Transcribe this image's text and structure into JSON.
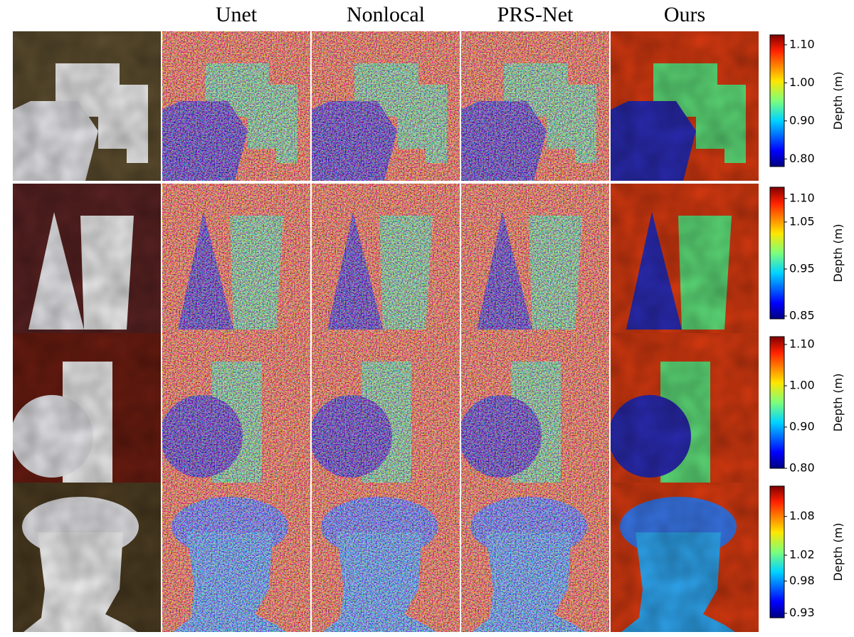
{
  "columns": [
    "Unet",
    "Nonlocal",
    "PRS-Net",
    "Ours"
  ],
  "rows": [
    {
      "colorbar": {
        "label": "Depth (m)",
        "lim": [
          0.78,
          1.126
        ],
        "ticks": [
          {
            "value": 1.1,
            "label": "1.10"
          },
          {
            "value": 1.0,
            "label": "1.00"
          },
          {
            "value": 0.9,
            "label": "0.90"
          },
          {
            "value": 0.8,
            "label": "0.80"
          }
        ]
      }
    },
    {
      "colorbar": {
        "label": "Depth (m)",
        "lim": [
          0.844,
          1.124
        ],
        "ticks": [
          {
            "value": 1.1,
            "label": "1.10"
          },
          1.05,
          0.95,
          0.85
        ]
      }
    },
    {
      "colorbar": {
        "label": "Depth (m)",
        "lim": [
          0.8,
          1.119
        ],
        "ticks": [
          {
            "value": 1.1,
            "label": "1.10"
          },
          {
            "value": 1.0,
            "label": "1.00"
          },
          {
            "value": 0.9,
            "label": "0.90"
          },
          {
            "value": 0.8,
            "label": "0.80"
          }
        ]
      }
    },
    {
      "colorbar": {
        "label": "Depth (m)",
        "lim": [
          0.923,
          1.127
        ],
        "ticks": [
          1.08,
          1.02,
          0.98,
          0.93
        ]
      }
    }
  ]
}
